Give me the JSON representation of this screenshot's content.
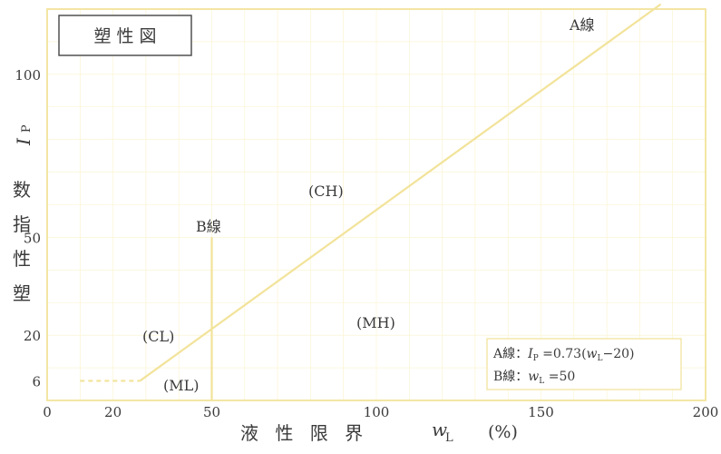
{
  "chart_data": {
    "type": "line",
    "title": "塑 性 図",
    "xlabel": "液 性 限 界",
    "xlabel_symbol": "w",
    "xlabel_subscript": "L",
    "xlabel_unit": "(%)",
    "ylabel": "塑 性 指 数",
    "ylabel_symbol": "I",
    "ylabel_subscript": "P",
    "xlim": [
      0,
      200
    ],
    "ylim": [
      0,
      120
    ],
    "x_ticks": [
      0,
      20,
      50,
      100,
      150,
      200
    ],
    "y_ticks": [
      6,
      20,
      50,
      100
    ],
    "colors": {
      "line": "#f2e39a",
      "grid": "#fbf3cc",
      "frame": "#f2e39a",
      "text": "#3a3a3a"
    },
    "series": [
      {
        "name": "A線",
        "points": [
          [
            28.2,
            6
          ],
          [
            186.4,
            121.5
          ]
        ]
      },
      {
        "name": "B線",
        "points": [
          [
            50,
            0
          ],
          [
            50,
            50
          ]
        ]
      },
      {
        "name": "",
        "points": [
          [
            10,
            6
          ],
          [
            28.2,
            6
          ]
        ],
        "style": "dashed"
      }
    ],
    "region_labels": [
      "(CH)",
      "(CL)",
      "(MH)",
      "(ML)"
    ],
    "line_labels": [
      "A線",
      "B線"
    ],
    "legend": {
      "line1": {
        "prefix": "A線：",
        "var": "I",
        "sub": "P",
        "eq": " =0.73(",
        "var2": "w",
        "sub2": "L",
        "tail": "−20)"
      },
      "line2": {
        "prefix": "B線：",
        "var": "w",
        "sub": "L",
        "tail": " =50"
      }
    }
  }
}
